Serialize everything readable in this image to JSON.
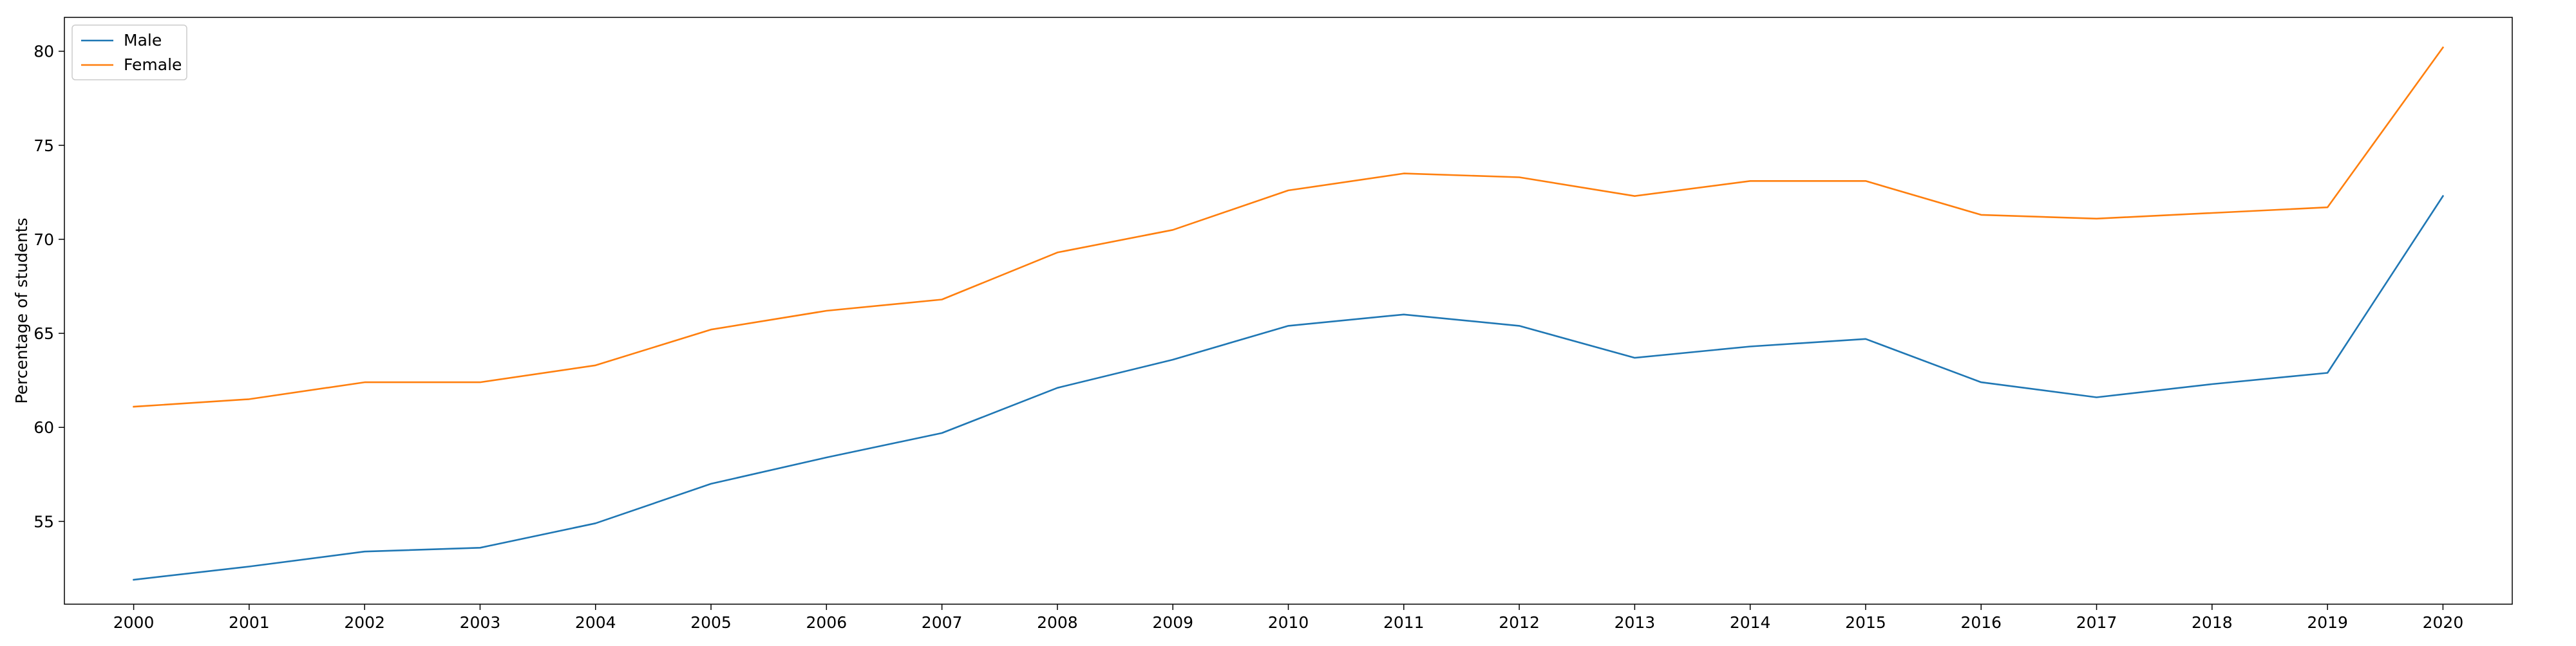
{
  "chart_data": {
    "type": "line",
    "title": "",
    "xlabel": "",
    "ylabel": "Percentage of students",
    "categories": [
      "2000",
      "2001",
      "2002",
      "2003",
      "2004",
      "2005",
      "2006",
      "2007",
      "2008",
      "2009",
      "2010",
      "2011",
      "2012",
      "2013",
      "2014",
      "2015",
      "2016",
      "2017",
      "2018",
      "2019",
      "2020"
    ],
    "ylim": [
      50.6,
      81.8
    ],
    "yticks": [
      55,
      60,
      65,
      70,
      75,
      80
    ],
    "grid": false,
    "legend_position": "top-left",
    "series": [
      {
        "name": "Male",
        "color": "#1f77b4",
        "values": [
          51.9,
          52.6,
          53.4,
          53.6,
          54.9,
          57.0,
          58.4,
          59.7,
          62.1,
          63.6,
          65.4,
          66.0,
          65.4,
          63.7,
          64.3,
          64.7,
          62.4,
          61.6,
          62.3,
          62.9,
          72.3
        ]
      },
      {
        "name": "Female",
        "color": "#ff7f0e",
        "values": [
          61.1,
          61.5,
          62.4,
          62.4,
          63.3,
          65.2,
          66.2,
          66.8,
          69.3,
          70.5,
          72.6,
          73.5,
          73.3,
          72.3,
          73.1,
          73.1,
          71.3,
          71.1,
          71.4,
          71.7,
          80.2
        ]
      }
    ]
  }
}
